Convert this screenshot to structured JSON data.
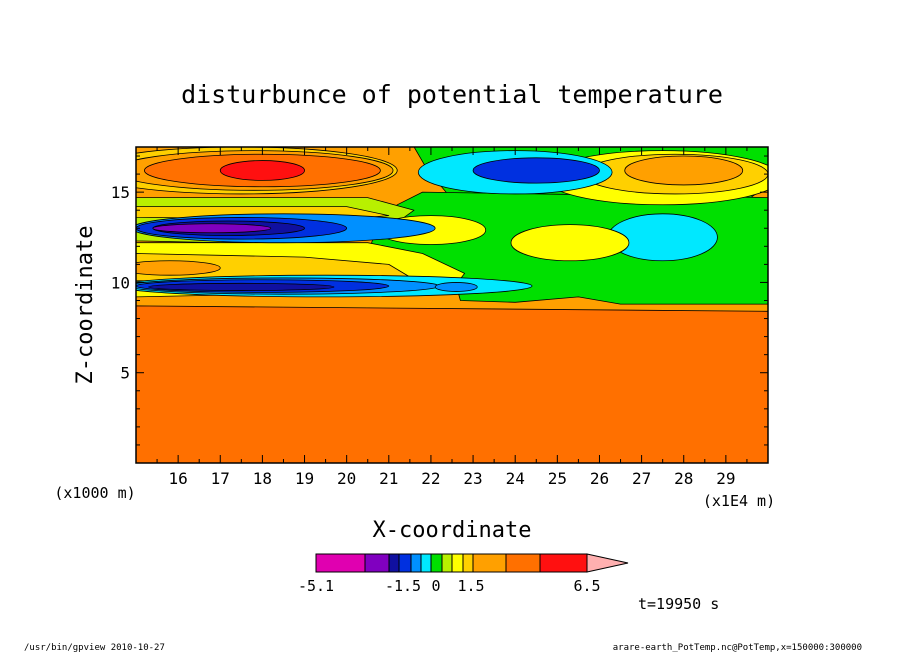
{
  "chart_data": {
    "type": "heatmap",
    "title": "disturbunce of potential temperature",
    "xlabel": "X-coordinate",
    "ylabel": "Z-coordinate",
    "x_unit_left": "(x1000 m)",
    "x_unit_right": "(x1E4 m)",
    "x_ticks": [
      16,
      17,
      18,
      19,
      20,
      21,
      22,
      23,
      24,
      25,
      26,
      27,
      28,
      29
    ],
    "x_tick_labels": [
      "16",
      "17",
      "18",
      "19",
      "20",
      "21",
      "22",
      "23",
      "24",
      "25",
      "26",
      "27",
      "28",
      "29"
    ],
    "y_ticks": [
      5,
      10,
      15
    ],
    "y_tick_labels": [
      "5",
      "10",
      "15"
    ],
    "xlim": [
      15.0,
      30.0
    ],
    "ylim": [
      0.0,
      17.5
    ],
    "colorbar": {
      "colors": [
        "#e000b0",
        "#8000c0",
        "#1010a0",
        "#0030e0",
        "#0090ff",
        "#00e8ff",
        "#00e000",
        "#b8f000",
        "#ffff00",
        "#ffd000",
        "#ffa000",
        "#ff7000",
        "#ff1010",
        "#ff7878",
        "#ffb0b0"
      ],
      "labels": [
        "-5.1",
        "-1.5",
        "0",
        "1.5",
        "6.5"
      ]
    },
    "time_label": "t=19950 s",
    "layers": [
      {
        "name": "bottom-orange",
        "color": "#ff7000",
        "top": [
          [
            15,
            1.6
          ],
          [
            17,
            1.6
          ],
          [
            19,
            1.5
          ],
          [
            21,
            1.6
          ],
          [
            22,
            2.2
          ],
          [
            22.7,
            2.9
          ],
          [
            23.5,
            2.8
          ],
          [
            25,
            2.2
          ],
          [
            27,
            1.6
          ],
          [
            30,
            1.9
          ]
        ]
      },
      {
        "name": "bottom-red",
        "color": "#ff1010",
        "top": [
          [
            15,
            4.3
          ],
          [
            17,
            4.0
          ],
          [
            19,
            3.7
          ],
          [
            21,
            3.6
          ],
          [
            22,
            4.4
          ],
          [
            23.5,
            4.6
          ],
          [
            25,
            4.3
          ],
          [
            27,
            4.1
          ],
          [
            30,
            4.2
          ]
        ]
      },
      {
        "name": "mid-pink",
        "color": "#ff7878",
        "top": [
          [
            15,
            6.2
          ],
          [
            17,
            5.8
          ],
          [
            19,
            5.6
          ],
          [
            21,
            5.7
          ],
          [
            21.7,
            5.0
          ],
          [
            22,
            4.9
          ],
          [
            22.3,
            5.9
          ],
          [
            24,
            6.2
          ],
          [
            27,
            6.3
          ],
          [
            30,
            6.2
          ]
        ]
      },
      {
        "name": "upper-red",
        "color": "#ff1010",
        "top": [
          [
            15,
            7.1
          ],
          [
            17,
            7.2
          ],
          [
            20,
            7.1
          ],
          [
            23,
            7.0
          ],
          [
            26,
            7.2
          ],
          [
            30,
            7.0
          ]
        ]
      },
      {
        "name": "orange-band-1",
        "color": "#ff7000",
        "top": [
          [
            15,
            7.7
          ],
          [
            30,
            7.6
          ]
        ]
      },
      {
        "name": "orange-band-2",
        "color": "#ffa000",
        "top": [
          [
            15,
            8.2
          ],
          [
            30,
            8.0
          ]
        ]
      },
      {
        "name": "orange-band-3",
        "color": "#ff7000",
        "top": [
          [
            15,
            8.7
          ],
          [
            30,
            8.4
          ]
        ]
      }
    ],
    "blobs": [
      {
        "color": "#ffd000",
        "x": 17.5,
        "y": 16.2,
        "rx": 3.7,
        "ry": 1.3
      },
      {
        "color": "#ffa000",
        "x": 17.8,
        "y": 16.2,
        "rx": 3.3,
        "ry": 1.1
      },
      {
        "color": "#ff7000",
        "x": 18.0,
        "y": 16.2,
        "rx": 2.8,
        "ry": 0.9
      },
      {
        "color": "#ff1010",
        "x": 18.0,
        "y": 16.2,
        "rx": 1.0,
        "ry": 0.55
      },
      {
        "color": "#ffff00",
        "x": 27.5,
        "y": 15.8,
        "rx": 2.8,
        "ry": 1.5
      },
      {
        "color": "#ffd000",
        "x": 27.8,
        "y": 16.0,
        "rx": 2.2,
        "ry": 1.1
      },
      {
        "color": "#ffa000",
        "x": 28.0,
        "y": 16.2,
        "rx": 1.4,
        "ry": 0.8
      },
      {
        "color": "#00e8ff",
        "x": 24.0,
        "y": 16.1,
        "rx": 2.3,
        "ry": 1.2
      },
      {
        "color": "#0030e0",
        "x": 24.5,
        "y": 16.2,
        "rx": 1.5,
        "ry": 0.7
      },
      {
        "color": "#00e8ff",
        "x": 27.5,
        "y": 12.5,
        "rx": 1.3,
        "ry": 1.3
      },
      {
        "color": "#ffff00",
        "x": 25.3,
        "y": 12.2,
        "rx": 1.4,
        "ry": 1.0
      },
      {
        "color": "#ffff00",
        "x": 22.0,
        "y": 12.9,
        "rx": 1.3,
        "ry": 0.8
      },
      {
        "color": "#0090ff",
        "x": 18.5,
        "y": 13.0,
        "rx": 3.6,
        "ry": 0.8
      },
      {
        "color": "#0030e0",
        "x": 17.5,
        "y": 13.0,
        "rx": 2.5,
        "ry": 0.6
      },
      {
        "color": "#1010a0",
        "x": 17.2,
        "y": 13.0,
        "rx": 1.8,
        "ry": 0.4
      },
      {
        "color": "#8000c0",
        "x": 16.8,
        "y": 13.0,
        "rx": 1.4,
        "ry": 0.25
      },
      {
        "color": "#ffa000",
        "x": 15.8,
        "y": 10.8,
        "rx": 1.2,
        "ry": 0.4
      },
      {
        "color": "#00e8ff",
        "x": 19.5,
        "y": 9.8,
        "rx": 4.9,
        "ry": 0.6
      },
      {
        "color": "#0090ff",
        "x": 18.5,
        "y": 9.8,
        "rx": 3.7,
        "ry": 0.45
      },
      {
        "color": "#0030e0",
        "x": 18.0,
        "y": 9.8,
        "rx": 3.0,
        "ry": 0.35
      },
      {
        "color": "#1010a0",
        "x": 17.5,
        "y": 9.75,
        "rx": 2.2,
        "ry": 0.2
      },
      {
        "color": "#0090ff",
        "x": 22.6,
        "y": 9.75,
        "rx": 0.5,
        "ry": 0.25
      }
    ],
    "regions": [
      {
        "color": "#00e000",
        "points": [
          [
            21.6,
            17.5
          ],
          [
            30,
            17.5
          ],
          [
            30,
            15.4
          ],
          [
            29.3,
            14.2
          ],
          [
            28.5,
            13.8
          ],
          [
            26,
            13.5
          ],
          [
            24,
            14.1
          ],
          [
            22.5,
            14.6
          ],
          [
            21.9,
            16.3
          ]
        ]
      },
      {
        "color": "#00e000",
        "points": [
          [
            21.8,
            15.0
          ],
          [
            30,
            14.7
          ],
          [
            30,
            8.8
          ],
          [
            26.5,
            8.8
          ],
          [
            25.5,
            9.2
          ],
          [
            24,
            8.9
          ],
          [
            22.7,
            9.0
          ],
          [
            22.5,
            10.7
          ],
          [
            21.5,
            11.5
          ],
          [
            20.5,
            11.5
          ],
          [
            20.7,
            13.0
          ],
          [
            21.2,
            14.3
          ]
        ]
      },
      {
        "color": "#b8f000",
        "points": [
          [
            15,
            14.7
          ],
          [
            20.5,
            14.7
          ],
          [
            21.6,
            14.0
          ],
          [
            21.0,
            13.0
          ],
          [
            20.0,
            12.3
          ],
          [
            17,
            12.2
          ],
          [
            15,
            12.3
          ]
        ]
      },
      {
        "color": "#ffff00",
        "points": [
          [
            15,
            12.2
          ],
          [
            20.5,
            12.2
          ],
          [
            21.8,
            11.6
          ],
          [
            22.8,
            10.5
          ],
          [
            22.5,
            9.6
          ],
          [
            21.0,
            9.4
          ],
          [
            17,
            9.3
          ],
          [
            15,
            9.2
          ]
        ]
      },
      {
        "color": "#ffd000",
        "points": [
          [
            15,
            11.6
          ],
          [
            19,
            11.4
          ],
          [
            21,
            11.0
          ],
          [
            21.5,
            10.3
          ],
          [
            20,
            10.0
          ],
          [
            15,
            10.1
          ]
        ]
      },
      {
        "color": "#ffd000",
        "points": [
          [
            15,
            14.2
          ],
          [
            20,
            14.2
          ],
          [
            21,
            13.7
          ],
          [
            20,
            13.5
          ],
          [
            15,
            13.6
          ]
        ]
      }
    ]
  },
  "footer": {
    "left": "/usr/bin/gpview   2010-10-27",
    "right": "arare-earth_PotTemp.nc@PotTemp,x=150000:300000"
  }
}
